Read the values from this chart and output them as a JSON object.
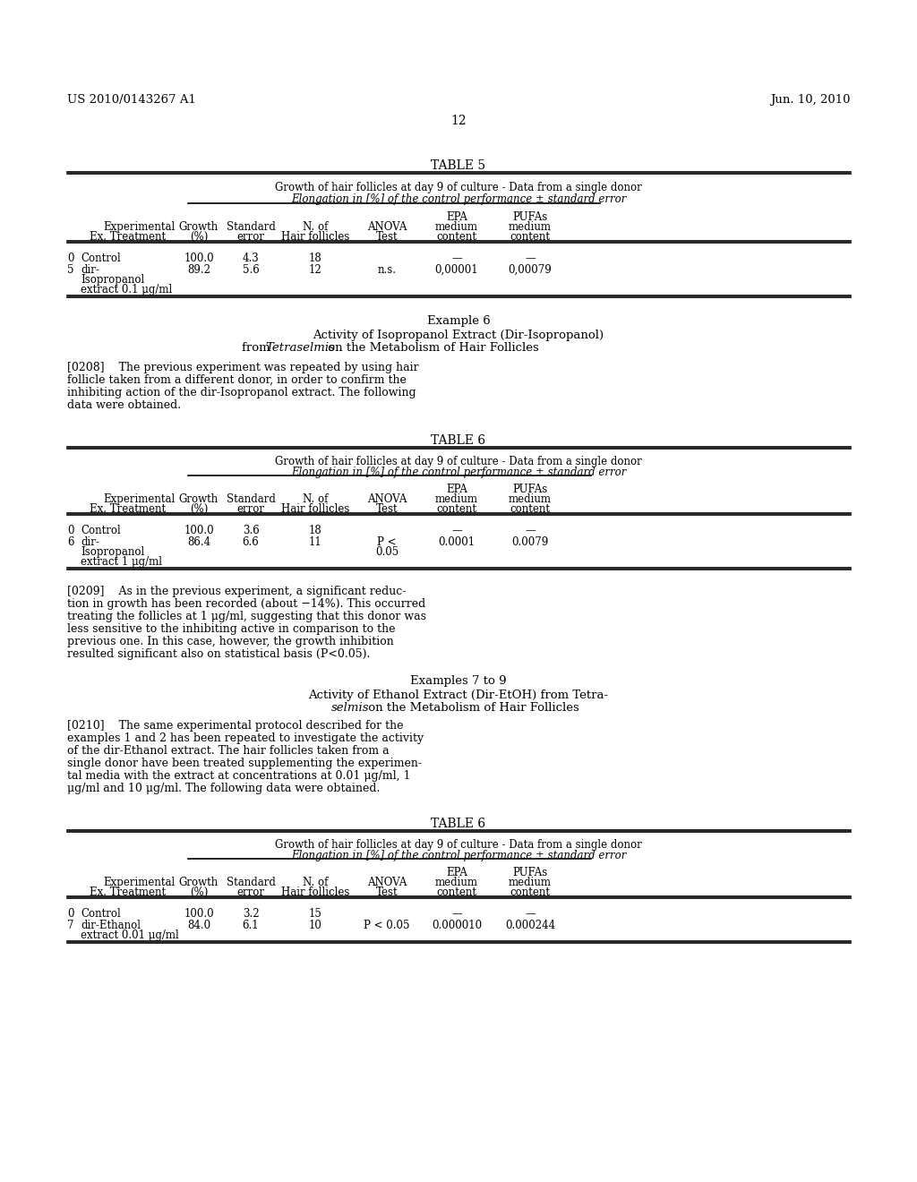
{
  "page_number": "12",
  "header_left": "US 2010/0143267 A1",
  "header_right": "Jun. 10, 2010",
  "bg_color": "#ffffff"
}
